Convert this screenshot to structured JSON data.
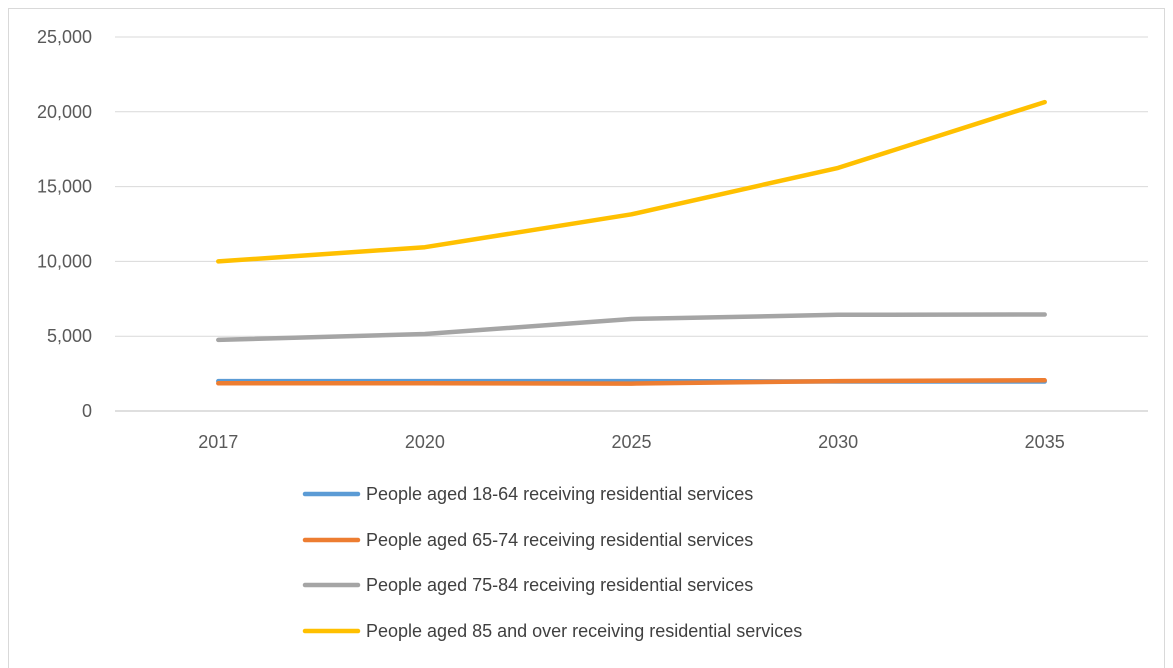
{
  "chart_data": {
    "type": "line",
    "title": "",
    "xlabel": "",
    "ylabel": "",
    "categories": [
      "2017",
      "2020",
      "2025",
      "2030",
      "2035"
    ],
    "ylim": [
      0,
      25000
    ],
    "yticks": [
      0,
      5000,
      10000,
      15000,
      20000,
      25000
    ],
    "ytick_labels": [
      "0",
      "5,000",
      "10,000",
      "15,000",
      "20,000",
      "25,000"
    ],
    "grid": true,
    "legend_position": "bottom",
    "series": [
      {
        "name": "People aged 18-64 receiving residential services",
        "color": "#5B9BD5",
        "values": [
          2000,
          2000,
          2000,
          1970,
          1970
        ]
      },
      {
        "name": "People aged 65-74 receiving residential services",
        "color": "#ED7D31",
        "values": [
          1850,
          1850,
          1830,
          2000,
          2050
        ]
      },
      {
        "name": "People aged 75-84 receiving residential services",
        "color": "#A5A5A5",
        "values": [
          4750,
          5150,
          6150,
          6430,
          6450
        ]
      },
      {
        "name": "People aged 85 and over receiving residential services",
        "color": "#FFC000",
        "values": [
          10000,
          10950,
          13150,
          16250,
          20650
        ]
      }
    ]
  }
}
